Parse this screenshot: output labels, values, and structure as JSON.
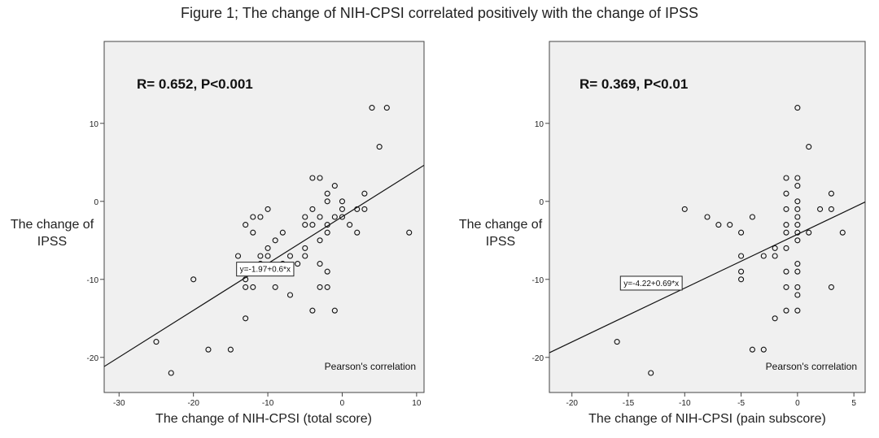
{
  "figure_title": "Figure 1; The change of NIH-CPSI correlated positively with the change of IPSS",
  "chart_data": [
    {
      "type": "scatter",
      "title": "",
      "annotation": "R= 0.652, P<0.001",
      "fit_label": "y=-1.97+0.6*x",
      "footer_note": "Pearson's correlation",
      "xlabel": "The change of NIH-CPSI (total score)",
      "ylabel": "The change of IPSS",
      "xlim": [
        -32,
        11
      ],
      "ylim": [
        -24.5,
        20.5
      ],
      "xticks": [
        -30,
        -20,
        -10,
        0,
        10
      ],
      "yticks": [
        -20,
        -10,
        0,
        10
      ],
      "fit": {
        "intercept": -1.97,
        "slope": 0.6
      },
      "grid": false,
      "points": [
        [
          -25,
          -18
        ],
        [
          -23,
          -22
        ],
        [
          -20,
          -10
        ],
        [
          -18,
          -19
        ],
        [
          -15,
          -19
        ],
        [
          -14,
          -7
        ],
        [
          -13,
          -3
        ],
        [
          -13,
          -10
        ],
        [
          -13,
          -11
        ],
        [
          -13,
          -15
        ],
        [
          -12,
          -2
        ],
        [
          -12,
          -4
        ],
        [
          -12,
          -11
        ],
        [
          -11,
          -2
        ],
        [
          -11,
          -7
        ],
        [
          -11,
          -8
        ],
        [
          -11,
          -9
        ],
        [
          -10,
          -1
        ],
        [
          -10,
          -6
        ],
        [
          -10,
          -7
        ],
        [
          -9,
          -5
        ],
        [
          -9,
          -11
        ],
        [
          -8,
          -4
        ],
        [
          -8,
          -8
        ],
        [
          -7,
          -7
        ],
        [
          -7,
          -9
        ],
        [
          -7,
          -12
        ],
        [
          -6,
          -8
        ],
        [
          -5,
          -2
        ],
        [
          -5,
          -3
        ],
        [
          -5,
          -6
        ],
        [
          -5,
          -7
        ],
        [
          -4,
          -1
        ],
        [
          -4,
          -3
        ],
        [
          -4,
          -14
        ],
        [
          -4,
          3
        ],
        [
          -3,
          -2
        ],
        [
          -3,
          -5
        ],
        [
          -3,
          -8
        ],
        [
          -3,
          -11
        ],
        [
          -3,
          3
        ],
        [
          -2,
          -11
        ],
        [
          -2,
          -9
        ],
        [
          -2,
          -4
        ],
        [
          -2,
          -3
        ],
        [
          -2,
          0
        ],
        [
          -2,
          1
        ],
        [
          -1,
          -14
        ],
        [
          -1,
          -2
        ],
        [
          -1,
          2
        ],
        [
          0,
          -1
        ],
        [
          0,
          -2
        ],
        [
          0,
          0
        ],
        [
          1,
          -3
        ],
        [
          2,
          -1
        ],
        [
          2,
          -4
        ],
        [
          3,
          -1
        ],
        [
          3,
          1
        ],
        [
          4,
          12
        ],
        [
          5,
          7
        ],
        [
          6,
          12
        ],
        [
          9,
          -4
        ]
      ]
    },
    {
      "type": "scatter",
      "title": "",
      "annotation": "R= 0.369, P<0.01",
      "fit_label": "y=-4.22+0.69*x",
      "footer_note": "Pearson's correlation",
      "xlabel": "The change of NIH-CPSI (pain subscore)",
      "ylabel": "The change of IPSS",
      "xlim": [
        -22,
        6
      ],
      "ylim": [
        -24.5,
        20.5
      ],
      "xticks": [
        -20,
        -15,
        -10,
        -5,
        0,
        5
      ],
      "yticks": [
        -20,
        -10,
        0,
        10
      ],
      "fit": {
        "intercept": -4.22,
        "slope": 0.69
      },
      "grid": false,
      "points": [
        [
          -16,
          -18
        ],
        [
          -13,
          -22
        ],
        [
          -10,
          -1
        ],
        [
          -8,
          -2
        ],
        [
          -7,
          -3
        ],
        [
          -6,
          -3
        ],
        [
          -5,
          -4
        ],
        [
          -5,
          -7
        ],
        [
          -5,
          -9
        ],
        [
          -5,
          -10
        ],
        [
          -4,
          -2
        ],
        [
          -4,
          -19
        ],
        [
          -3,
          -7
        ],
        [
          -3,
          -19
        ],
        [
          -2,
          -6
        ],
        [
          -2,
          -7
        ],
        [
          -2,
          -15
        ],
        [
          -1,
          -1
        ],
        [
          -1,
          -3
        ],
        [
          -1,
          -4
        ],
        [
          -1,
          -6
        ],
        [
          -1,
          -9
        ],
        [
          -1,
          -11
        ],
        [
          -1,
          -14
        ],
        [
          -1,
          1
        ],
        [
          -1,
          3
        ],
        [
          0,
          12
        ],
        [
          0,
          3
        ],
        [
          0,
          2
        ],
        [
          0,
          0
        ],
        [
          0,
          -1
        ],
        [
          0,
          -2
        ],
        [
          0,
          -3
        ],
        [
          0,
          -4
        ],
        [
          0,
          -5
        ],
        [
          0,
          -8
        ],
        [
          0,
          -9
        ],
        [
          0,
          -11
        ],
        [
          0,
          -12
        ],
        [
          0,
          -14
        ],
        [
          1,
          7
        ],
        [
          1,
          -4
        ],
        [
          2,
          -1
        ],
        [
          3,
          1
        ],
        [
          3,
          -1
        ],
        [
          3,
          -11
        ],
        [
          4,
          -4
        ]
      ]
    }
  ]
}
